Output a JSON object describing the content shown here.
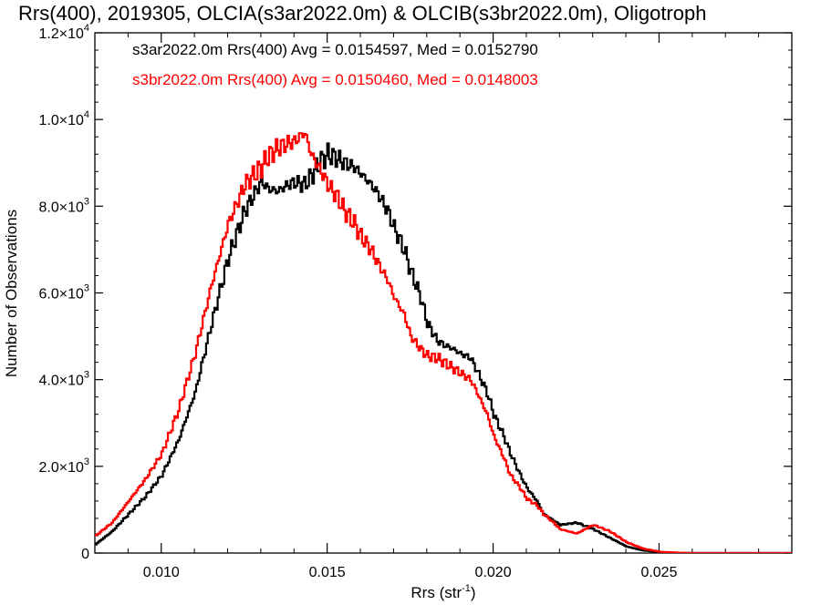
{
  "chart_data": {
    "type": "line",
    "title": "Rrs(400), 2019305, OLCIA(s3ar2022.0m) & OLCIB(s3br2022.0m), Oligotroph",
    "xlabel": "Rrs (str",
    "xlabel_sup": "-1",
    "xlabel_end": ")",
    "ylabel": "Number of Observations",
    "xlim": [
      0.008,
      0.029
    ],
    "ylim": [
      0,
      12000
    ],
    "x_ticks": [
      {
        "value": 0.01,
        "label": "0.010"
      },
      {
        "value": 0.015,
        "label": "0.015"
      },
      {
        "value": 0.02,
        "label": "0.020"
      },
      {
        "value": 0.025,
        "label": "0.025"
      }
    ],
    "y_ticks": [
      {
        "value": 0,
        "mant": "0",
        "exp": ""
      },
      {
        "value": 2000,
        "mant": "2.0×10",
        "exp": "3"
      },
      {
        "value": 4000,
        "mant": "4.0×10",
        "exp": "3"
      },
      {
        "value": 6000,
        "mant": "6.0×10",
        "exp": "3"
      },
      {
        "value": 8000,
        "mant": "8.0×10",
        "exp": "3"
      },
      {
        "value": 10000,
        "mant": "1.0×10",
        "exp": "4"
      },
      {
        "value": 12000,
        "mant": "1.2×10",
        "exp": "4"
      }
    ],
    "grid": false,
    "step": "histogram",
    "legend_position": "top-left",
    "series": [
      {
        "name": "s3ar2022.0m Rrs(400) Avg = 0.0154597, Med = 0.0152790",
        "color": "#000000",
        "x": [
          0.008,
          0.0085,
          0.009,
          0.0095,
          0.01,
          0.0105,
          0.011,
          0.0115,
          0.012,
          0.0125,
          0.0128,
          0.013,
          0.0132,
          0.0135,
          0.0138,
          0.014,
          0.0143,
          0.0145,
          0.0148,
          0.015,
          0.0153,
          0.0155,
          0.0158,
          0.016,
          0.0163,
          0.0165,
          0.0168,
          0.017,
          0.0173,
          0.0175,
          0.0178,
          0.018,
          0.0183,
          0.0185,
          0.0188,
          0.019,
          0.0193,
          0.0195,
          0.0198,
          0.02,
          0.0203,
          0.0205,
          0.0208,
          0.021,
          0.0213,
          0.0215,
          0.0218,
          0.022,
          0.0225,
          0.023,
          0.0235,
          0.024,
          0.0245,
          0.025,
          0.0255,
          0.026,
          0.027,
          0.028,
          0.029
        ],
        "y": [
          200,
          500,
          900,
          1300,
          1800,
          2600,
          3700,
          5300,
          6800,
          7900,
          8300,
          8600,
          8400,
          8350,
          8500,
          8550,
          8500,
          8700,
          9050,
          9200,
          9100,
          9000,
          8900,
          8750,
          8500,
          8300,
          7900,
          7500,
          7000,
          6500,
          5900,
          5300,
          4900,
          4800,
          4700,
          4600,
          4500,
          4200,
          3700,
          3200,
          2700,
          2300,
          1800,
          1500,
          1200,
          900,
          750,
          650,
          700,
          550,
          350,
          150,
          60,
          20,
          5,
          0,
          0,
          0,
          0
        ]
      },
      {
        "name": "s3br2022.0m Rrs(400) Avg = 0.0150460, Med = 0.0148003",
        "color": "#ff0000",
        "x": [
          0.008,
          0.0085,
          0.009,
          0.0095,
          0.01,
          0.0105,
          0.011,
          0.0115,
          0.012,
          0.0125,
          0.0128,
          0.013,
          0.0132,
          0.0135,
          0.0138,
          0.014,
          0.0143,
          0.0145,
          0.0148,
          0.015,
          0.0153,
          0.0155,
          0.0158,
          0.016,
          0.0163,
          0.0165,
          0.0168,
          0.017,
          0.0173,
          0.0175,
          0.0178,
          0.018,
          0.0183,
          0.0185,
          0.0188,
          0.019,
          0.0193,
          0.0195,
          0.0198,
          0.02,
          0.0203,
          0.0205,
          0.0208,
          0.021,
          0.0213,
          0.0215,
          0.0218,
          0.022,
          0.0225,
          0.023,
          0.0235,
          0.024,
          0.0245,
          0.025,
          0.0255,
          0.026,
          0.027,
          0.028,
          0.029
        ],
        "y": [
          400,
          700,
          1200,
          1700,
          2300,
          3300,
          4600,
          6200,
          7600,
          8500,
          8750,
          8900,
          9150,
          9350,
          9450,
          9500,
          9700,
          9200,
          8800,
          8500,
          8200,
          7900,
          7600,
          7300,
          7000,
          6700,
          6300,
          5900,
          5500,
          5000,
          4700,
          4550,
          4500,
          4400,
          4250,
          4150,
          4000,
          3700,
          3200,
          2700,
          2200,
          1800,
          1500,
          1250,
          1100,
          900,
          700,
          550,
          450,
          650,
          500,
          250,
          100,
          30,
          10,
          0,
          0,
          0,
          0
        ]
      }
    ]
  }
}
